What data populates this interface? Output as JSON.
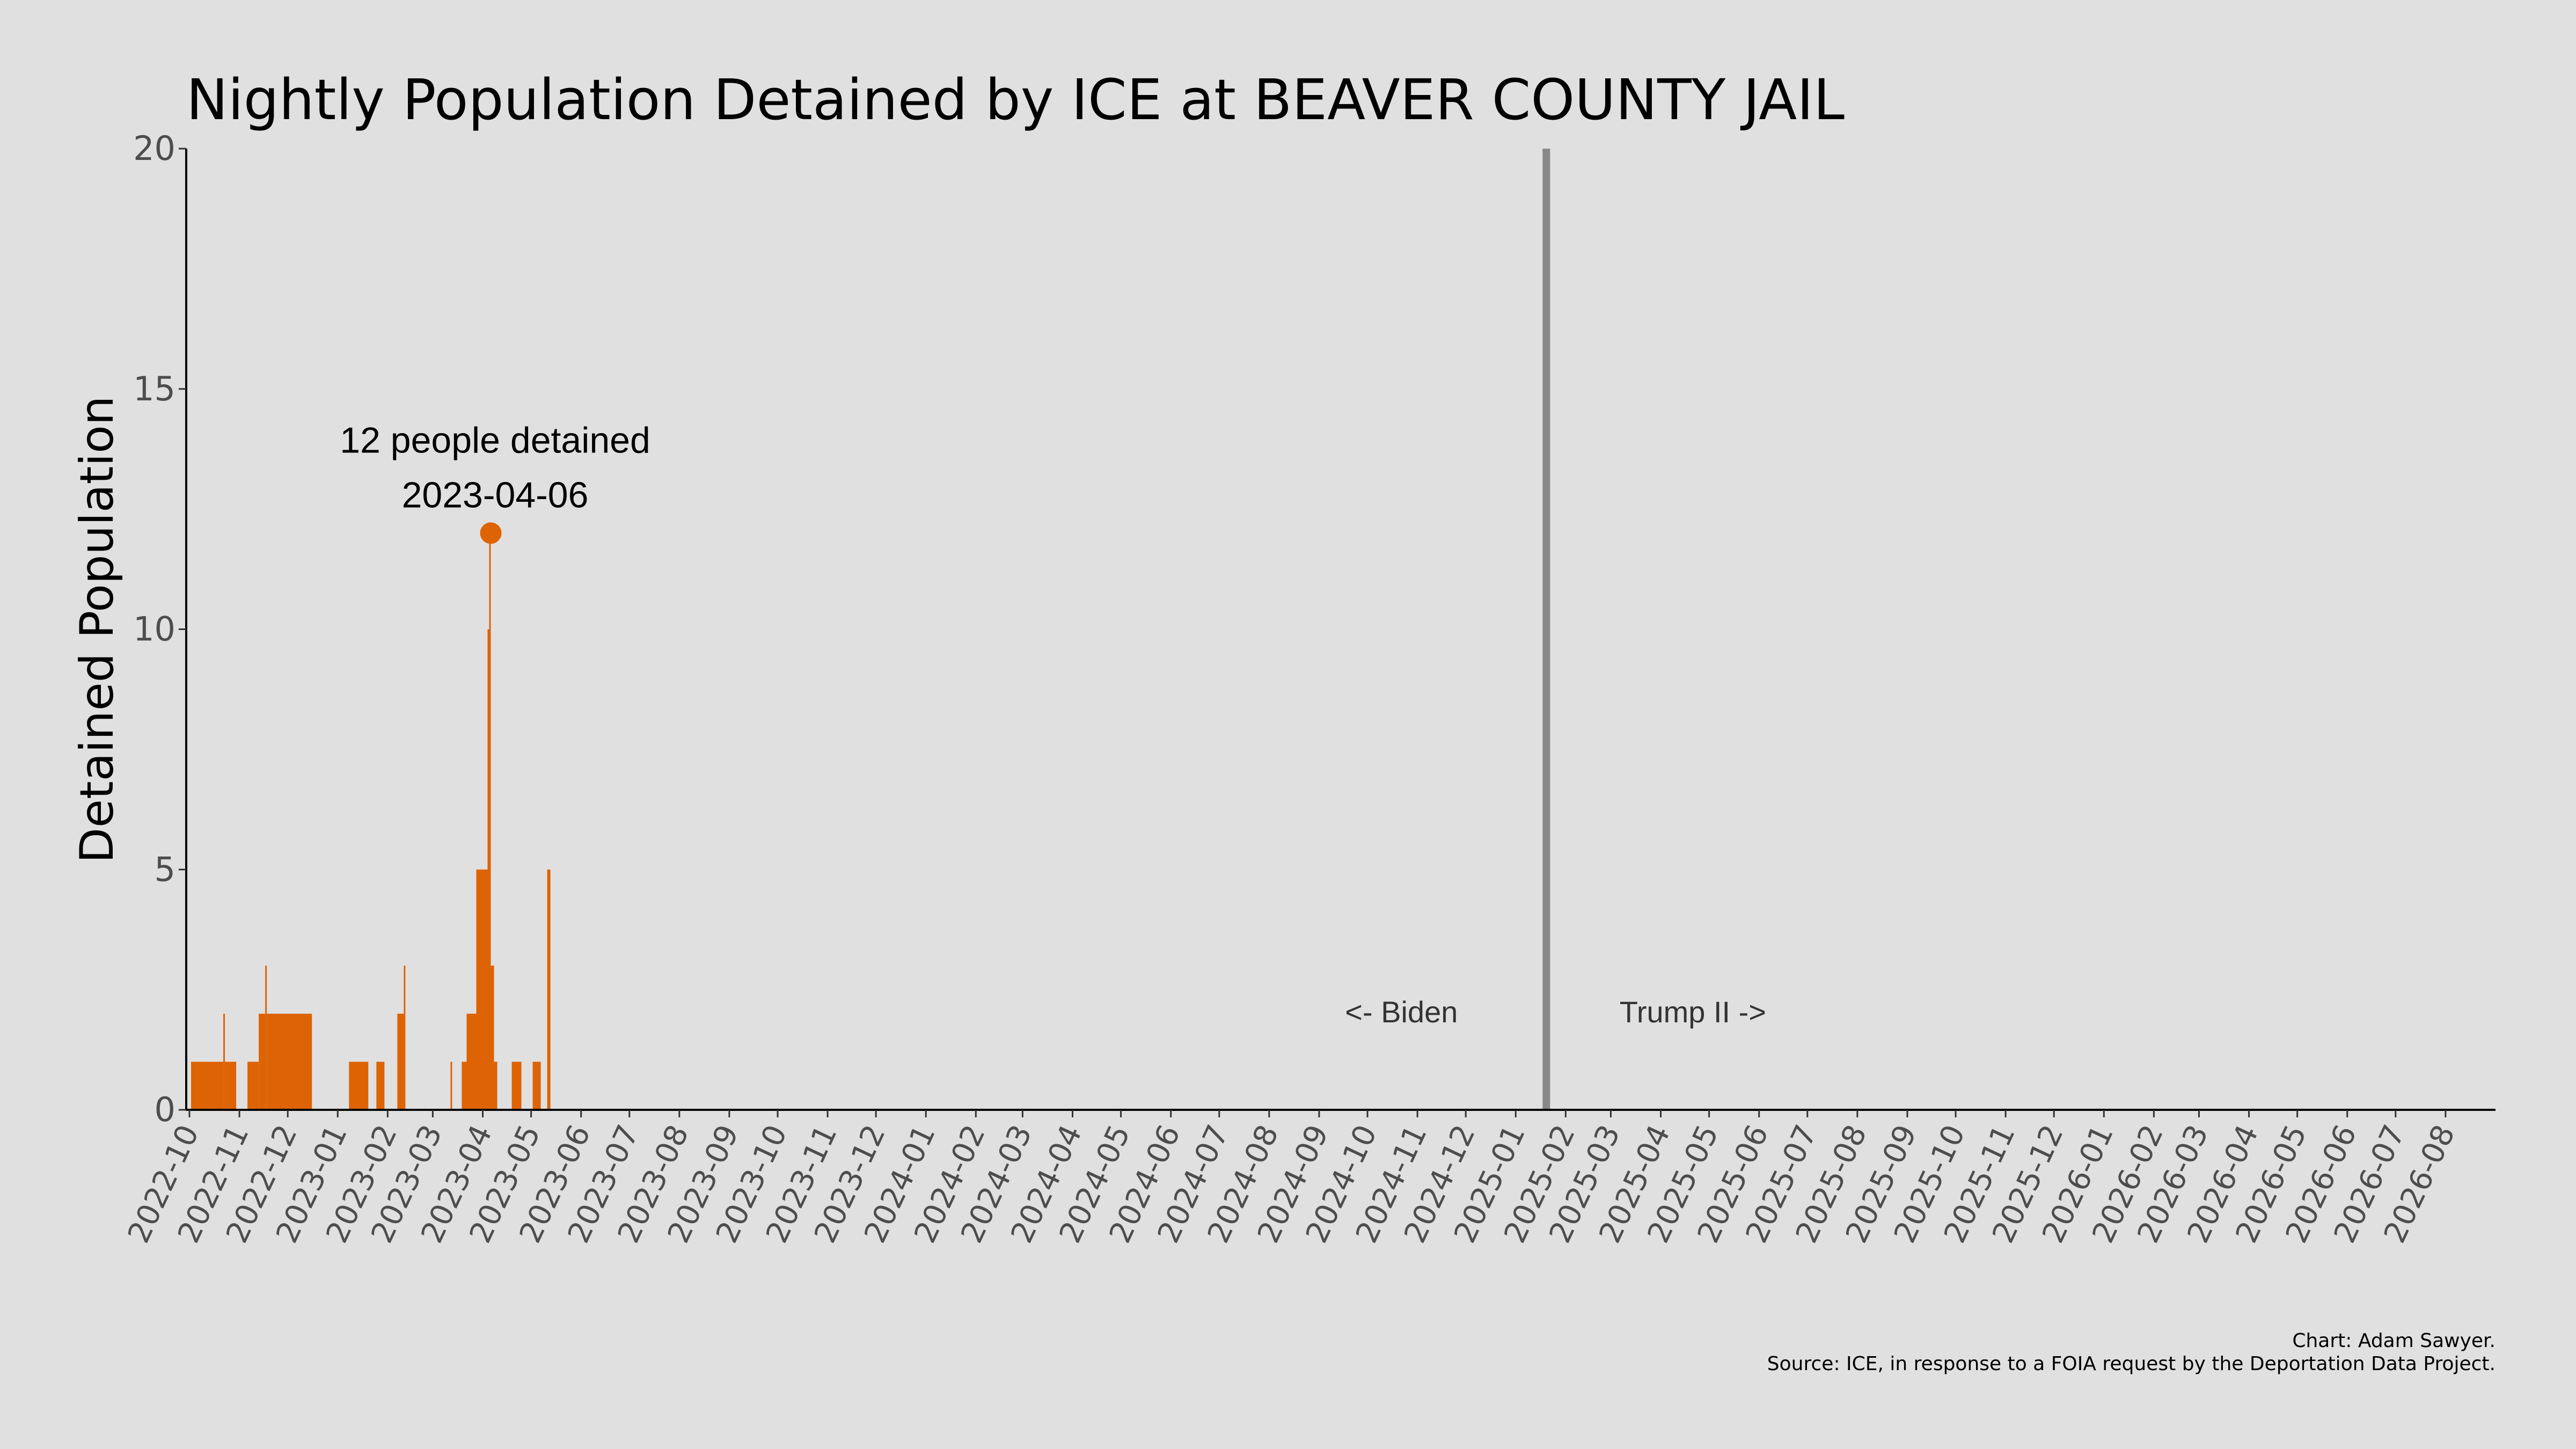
{
  "chart_data": {
    "type": "bar",
    "title": "Nightly Population Detained by ICE at BEAVER COUNTY JAIL",
    "xlabel": "",
    "ylabel": "Detained Population",
    "ylim": [
      0,
      20
    ],
    "yticks": [
      0,
      5,
      10,
      15,
      20
    ],
    "xlim": [
      "2022-09-29",
      "2026-09-01"
    ],
    "xticks": [
      "2022-10",
      "2022-11",
      "2022-12",
      "2023-01",
      "2023-02",
      "2023-03",
      "2023-04",
      "2023-05",
      "2023-06",
      "2023-07",
      "2023-08",
      "2023-09",
      "2023-10",
      "2023-11",
      "2023-12",
      "2024-01",
      "2024-02",
      "2024-03",
      "2024-04",
      "2024-05",
      "2024-06",
      "2024-07",
      "2024-08",
      "2024-09",
      "2024-10",
      "2024-11",
      "2024-12",
      "2025-01",
      "2025-02",
      "2025-03",
      "2025-04",
      "2025-05",
      "2025-06",
      "2025-07",
      "2025-08",
      "2025-09",
      "2025-10",
      "2025-11",
      "2025-12",
      "2026-01",
      "2026-02",
      "2026-03",
      "2026-04",
      "2026-05",
      "2026-06",
      "2026-07",
      "2026-08"
    ],
    "bar_color": "#dd6304",
    "grid": false,
    "series": [
      {
        "values": [
          {
            "start": "2022-10-02",
            "end": "2022-10-22",
            "value": 1
          },
          {
            "start": "2022-10-22",
            "end": "2022-10-23",
            "value": 2
          },
          {
            "start": "2022-10-23",
            "end": "2022-10-30",
            "value": 1
          },
          {
            "start": "2022-11-06",
            "end": "2022-11-13",
            "value": 1
          },
          {
            "start": "2022-11-13",
            "end": "2022-11-17",
            "value": 2
          },
          {
            "start": "2022-11-17",
            "end": "2022-11-18",
            "value": 3
          },
          {
            "start": "2022-11-18",
            "end": "2022-12-16",
            "value": 2
          },
          {
            "start": "2023-01-08",
            "end": "2023-01-20",
            "value": 1
          },
          {
            "start": "2023-01-25",
            "end": "2023-01-30",
            "value": 1
          },
          {
            "start": "2023-02-07",
            "end": "2023-02-11",
            "value": 2
          },
          {
            "start": "2023-02-11",
            "end": "2023-02-12",
            "value": 3
          },
          {
            "start": "2023-03-12",
            "end": "2023-03-13",
            "value": 1
          },
          {
            "start": "2023-03-19",
            "end": "2023-03-22",
            "value": 1
          },
          {
            "start": "2023-03-22",
            "end": "2023-03-28",
            "value": 2
          },
          {
            "start": "2023-03-28",
            "end": "2023-04-04",
            "value": 5
          },
          {
            "start": "2023-04-04",
            "end": "2023-04-05",
            "value": 10
          },
          {
            "start": "2023-04-05",
            "end": "2023-04-06",
            "value": 12
          },
          {
            "start": "2023-04-06",
            "end": "2023-04-08",
            "value": 3
          },
          {
            "start": "2023-04-08",
            "end": "2023-04-10",
            "value": 1
          },
          {
            "start": "2023-04-19",
            "end": "2023-04-25",
            "value": 1
          },
          {
            "start": "2023-05-02",
            "end": "2023-05-07",
            "value": 1
          },
          {
            "start": "2023-05-11",
            "end": "2023-05-13",
            "value": 5
          }
        ]
      }
    ],
    "peak": {
      "date": "2023-04-06",
      "value": 12
    },
    "annotations": {
      "peak_line1": "12 people detained",
      "peak_line2": "2023-04-06",
      "divider_date": "2025-01-20",
      "left_era": "<- Biden",
      "right_era": "Trump II ->"
    },
    "colors": {
      "background": "#e0e0e0",
      "bars": "#dd6304",
      "divider": "#888888",
      "axis": "#000000"
    }
  },
  "credits": {
    "line1": "Chart: Adam Sawyer.",
    "line2": "Source: ICE, in response to a FOIA request by the Deportation Data Project."
  }
}
